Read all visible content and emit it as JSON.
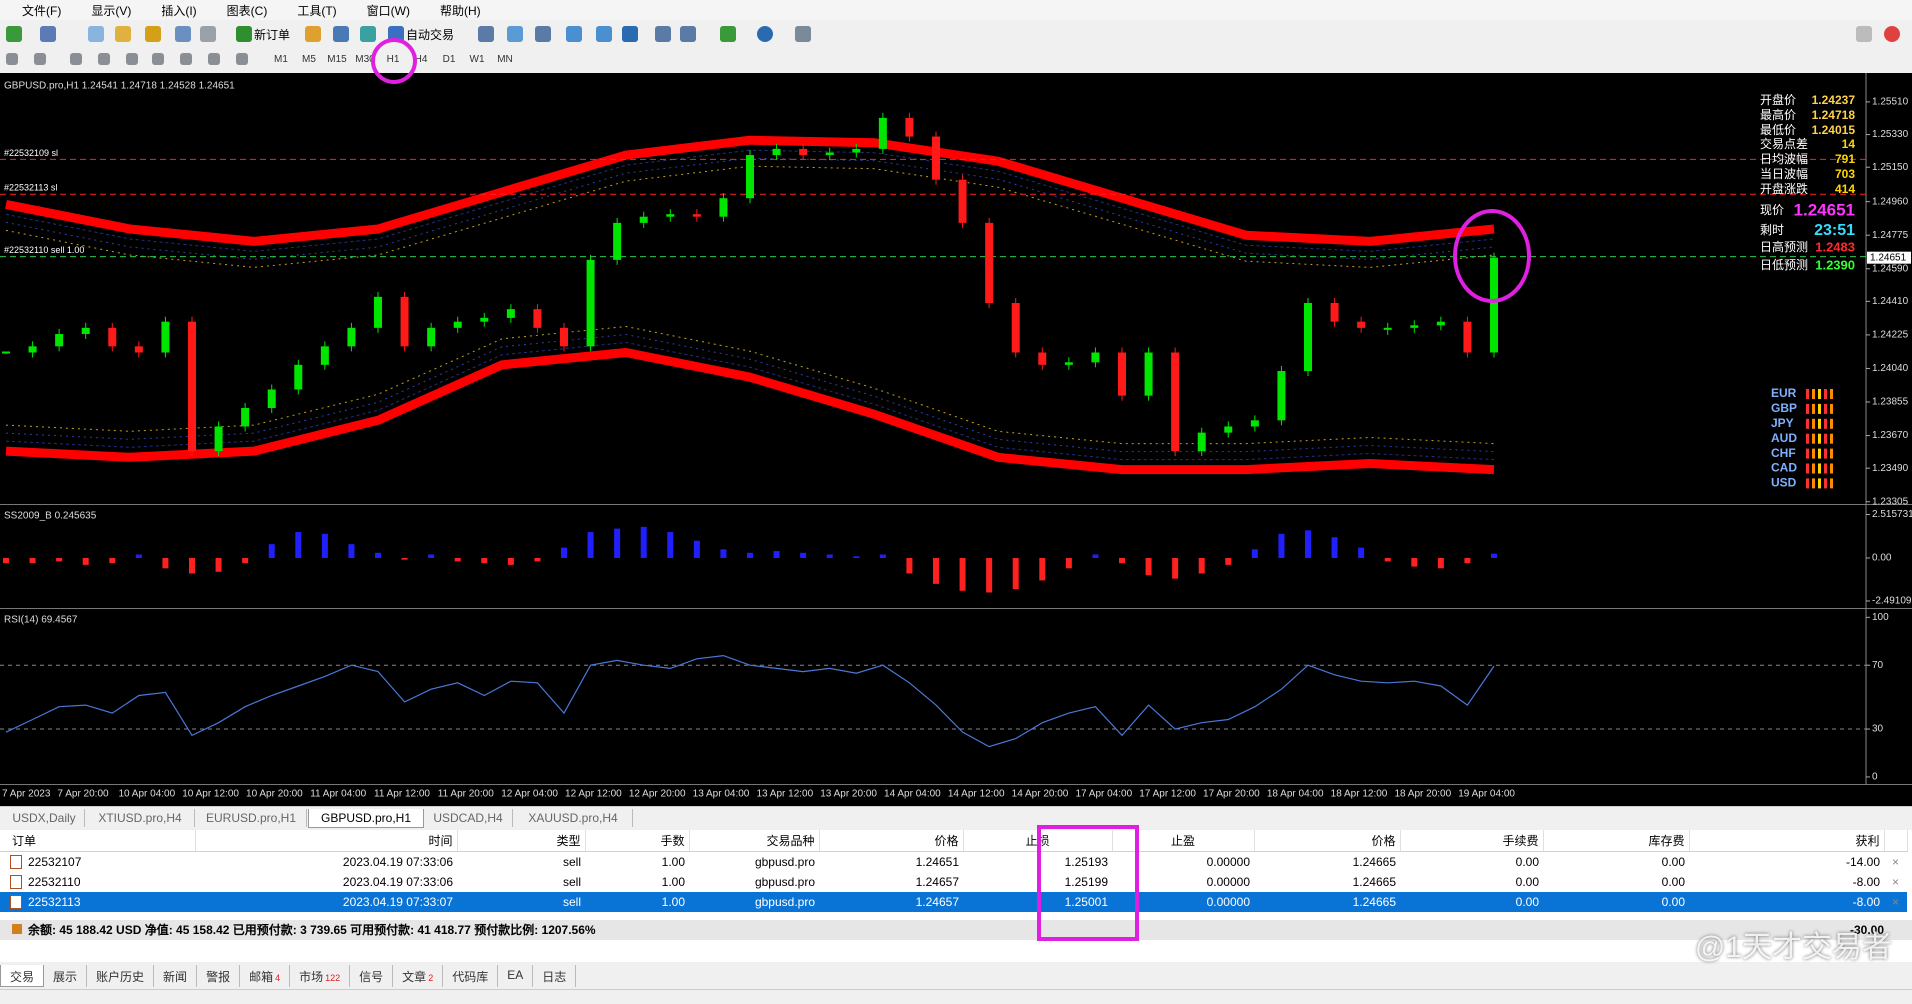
{
  "menu": [
    "文件(F)",
    "显示(V)",
    "插入(I)",
    "图表(C)",
    "工具(T)",
    "窗口(W)",
    "帮助(H)"
  ],
  "toolbar": {
    "new_order": "新订单",
    "auto_trading": "自动交易",
    "timeframes": [
      "M1",
      "M5",
      "M15",
      "M30",
      "H1",
      "H4",
      "D1",
      "W1",
      "MN"
    ]
  },
  "chart_data": [
    {
      "type": "candlestick",
      "title": "GBPUSD.pro,H1  1.24541 1.24718 1.24528 1.24651",
      "values": [
        1.24128,
        1.24162,
        1.2423,
        1.24264,
        1.24162,
        1.24128,
        1.24298,
        1.23584,
        1.2372,
        1.23822,
        1.23924,
        1.2406,
        1.24162,
        1.24264,
        1.24435,
        1.24162,
        1.24264,
        1.24298,
        1.24319,
        1.24367,
        1.24264,
        1.24162,
        1.24639,
        1.24843,
        1.24877,
        1.24891,
        1.24877,
        1.24979,
        1.25217,
        1.25251,
        1.25217,
        1.25231,
        1.25251,
        1.25422,
        1.25319,
        1.25081,
        1.24843,
        1.24401,
        1.24128,
        1.2406,
        1.24074,
        1.24128,
        1.2389,
        1.24128,
        1.23584,
        1.23686,
        1.2372,
        1.23754,
        1.24026,
        1.24401,
        1.24298,
        1.24264,
        1.24264,
        1.24278,
        1.24298,
        1.24128,
        1.24651
      ],
      "color_up": "#00e600",
      "color_down": "#ff1a1a",
      "bands": {
        "upper": [
          1.24945,
          1.24809,
          1.24741,
          1.24809,
          1.25013,
          1.25217,
          1.25299,
          1.25285,
          1.25183,
          1.24979,
          1.24775,
          1.24741,
          1.24809
        ],
        "lower": [
          1.23584,
          1.2355,
          1.23584,
          1.23754,
          1.2406,
          1.24128,
          1.23992,
          1.23788,
          1.2355,
          1.23482,
          1.23482,
          1.23516,
          1.23482
        ]
      },
      "band_color": "#ff0000",
      "ylim": [
        1.23298,
        1.25653
      ],
      "yticks": [
        {
          "value": 1.2551,
          "label": "1.25510"
        },
        {
          "value": 1.2533,
          "label": "1.25330"
        },
        {
          "value": 1.2515,
          "label": "1.25150"
        },
        {
          "value": 1.2496,
          "label": "1.24960"
        },
        {
          "value": 1.24775,
          "label": "1.24775"
        },
        {
          "value": 1.2459,
          "label": "1.24590"
        },
        {
          "value": 1.2441,
          "label": "1.24410"
        },
        {
          "value": 1.24225,
          "label": "1.24225"
        },
        {
          "value": 1.2404,
          "label": "1.24040"
        },
        {
          "value": 1.23855,
          "label": "1.23855"
        },
        {
          "value": 1.2367,
          "label": "1.23670"
        },
        {
          "value": 1.2349,
          "label": "1.23490"
        },
        {
          "value": 1.23305,
          "label": "1.23305"
        }
      ],
      "levels": [
        {
          "label": "#22532109 sl",
          "value": 1.25193,
          "color": "#ff2020"
        },
        {
          "label": "#22532113 sl",
          "value": 1.25001,
          "color": "#ff2020"
        },
        {
          "label": "#22532110 sell 1.00",
          "value": 1.24657,
          "color": "#28c850"
        }
      ],
      "current_price": 1.24651,
      "time_labels": [
        "7 Apr 2023",
        "7 Apr 20:00",
        "10 Apr 04:00",
        "10 Apr 12:00",
        "10 Apr 20:00",
        "11 Apr 04:00",
        "11 Apr 12:00",
        "11 Apr 20:00",
        "12 Apr 04:00",
        "12 Apr 12:00",
        "12 Apr 20:00",
        "13 Apr 04:00",
        "13 Apr 12:00",
        "13 Apr 20:00",
        "14 Apr 04:00",
        "14 Apr 12:00",
        "14 Apr 20:00",
        "17 Apr 04:00",
        "17 Apr 12:00",
        "17 Apr 20:00",
        "18 Apr 04:00",
        "18 Apr 12:00",
        "18 Apr 20:00",
        "19 Apr 04:00"
      ],
      "info": [
        {
          "label": "开盘价",
          "value": "1.24237",
          "color": "#ffd24a"
        },
        {
          "label": "最高价",
          "value": "1.24718",
          "color": "#ffd24a"
        },
        {
          "label": "最低价",
          "value": "1.24015",
          "color": "#ffd24a"
        },
        {
          "label": "交易点差",
          "value": "14",
          "color": "#ffd700"
        },
        {
          "label": "日均波幅",
          "value": "791",
          "color": "#ffd700"
        },
        {
          "label": "当日波幅",
          "value": "703",
          "color": "#ffd700"
        },
        {
          "label": "开盘涨跌",
          "value": "414",
          "color": "#ffd700"
        },
        {
          "label": "现价",
          "value": "1.24651",
          "color": "#ff33ff"
        },
        {
          "label": "剩时",
          "value": "23:51",
          "color": "#33ddff"
        },
        {
          "label": "日高预测",
          "value": "1.2483",
          "color": "#ff2a2a"
        },
        {
          "label": "日低预测",
          "value": "1.2390",
          "color": "#33ff33"
        }
      ],
      "currencies": [
        "EUR",
        "GBP",
        "JPY",
        "AUD",
        "CHF",
        "CAD",
        "USD"
      ]
    },
    {
      "type": "bar",
      "title": "SS2009_B 0.245635",
      "values": [
        -0.3,
        -0.3,
        -0.2,
        -0.4,
        -0.3,
        0.2,
        -0.6,
        -0.9,
        -0.8,
        -0.3,
        0.8,
        1.5,
        1.4,
        0.8,
        0.3,
        -0.1,
        0.2,
        -0.2,
        -0.3,
        -0.4,
        -0.2,
        0.6,
        1.5,
        1.7,
        1.8,
        1.5,
        1.0,
        0.5,
        0.3,
        0.4,
        0.3,
        0.2,
        0.1,
        0.2,
        -0.9,
        -1.5,
        -1.9,
        -2.0,
        -1.8,
        -1.3,
        -0.6,
        0.2,
        -0.3,
        -1.0,
        -1.2,
        -0.9,
        -0.4,
        0.5,
        1.4,
        1.6,
        1.2,
        0.6,
        -0.2,
        -0.5,
        -0.6,
        -0.3,
        0.25
      ],
      "color_pos": "#2020ff",
      "color_neg": "#ff2020",
      "ylim": [
        -2.84,
        3.01
      ],
      "yticks": [
        2.515731,
        {
          "value": 0,
          "label": "0.00"
        },
        -2.491099
      ]
    },
    {
      "type": "line",
      "title": "RSI(14) 69.4567",
      "values": [
        28,
        36,
        44,
        45,
        40,
        51,
        53,
        26,
        34,
        44,
        51,
        57,
        63,
        70,
        66,
        47,
        55,
        59,
        51,
        60,
        59,
        40,
        70,
        73,
        70,
        68,
        74,
        76,
        70,
        68,
        66,
        68,
        65,
        70,
        59,
        45,
        28,
        19,
        24,
        34,
        40,
        44,
        26,
        45,
        30,
        34,
        36,
        44,
        55,
        70,
        64,
        60,
        59,
        60,
        57,
        45,
        69.4567
      ],
      "color": "#4a78d8",
      "ylim": [
        -3.8,
        104.6
      ],
      "yticks": [
        100,
        70,
        30,
        0
      ],
      "levels": [
        70,
        30
      ]
    }
  ],
  "chart_tabs": [
    "USDX,Daily",
    "XTIUSD.pro,H4",
    "EURUSD.pro,H1",
    "GBPUSD.pro,H1",
    "USDCAD,H4",
    "XAUUSD.pro,H4"
  ],
  "active_tab": 3,
  "table": {
    "columns": [
      "订单",
      "时间",
      "类型",
      "手数",
      "交易品种",
      "价格",
      "止损",
      "止盈",
      "价格",
      "手续费",
      "库存费",
      "获利"
    ],
    "rows": [
      [
        "22532107",
        "2023.04.19 07:33:06",
        "sell",
        "1.00",
        "gbpusd.pro",
        "1.24651",
        "1.25193",
        "0.00000",
        "1.24665",
        "0.00",
        "0.00",
        "-14.00"
      ],
      [
        "22532110",
        "2023.04.19 07:33:06",
        "sell",
        "1.00",
        "gbpusd.pro",
        "1.24657",
        "1.25199",
        "0.00000",
        "1.24665",
        "0.00",
        "0.00",
        "-8.00"
      ],
      [
        "22532113",
        "2023.04.19 07:33:07",
        "sell",
        "1.00",
        "gbpusd.pro",
        "1.24657",
        "1.25001",
        "0.00000",
        "1.24665",
        "0.00",
        "0.00",
        "-8.00"
      ]
    ],
    "selected": 2,
    "summary": "余额: 45 188.42 USD  净值: 45 158.42  已用预付款: 3 739.65  可用预付款: 41 418.77  预付款比例: 1207.56%",
    "total": "-30.00"
  },
  "watermark": "@1天才交易者",
  "terminal_tabs": [
    {
      "label": "交易"
    },
    {
      "label": "展示"
    },
    {
      "label": "账户历史"
    },
    {
      "label": "新闻"
    },
    {
      "label": "警报"
    },
    {
      "label": "邮箱",
      "badge": 4
    },
    {
      "label": "市场",
      "badge": 122
    },
    {
      "label": "信号"
    },
    {
      "label": "文章",
      "badge": 2
    },
    {
      "label": "代码库"
    },
    {
      "label": "EA"
    },
    {
      "label": "日志"
    }
  ]
}
